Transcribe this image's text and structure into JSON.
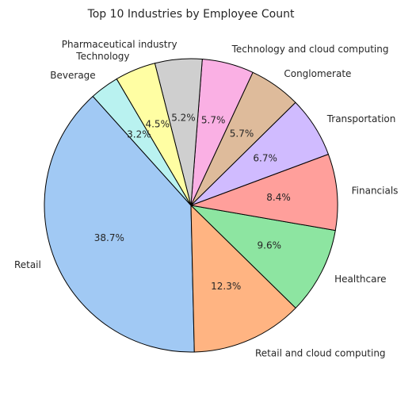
{
  "chart_data": {
    "type": "pie",
    "title": "Top 10 Industries by Employee Count",
    "start_angle_deg": 132,
    "direction": "counterclockwise",
    "slices": [
      {
        "label": "Retail",
        "value": 38.7,
        "pct_text": "38.7%",
        "color": "#a1c9f4"
      },
      {
        "label": "Retail and cloud computing",
        "value": 12.3,
        "pct_text": "12.3%",
        "color": "#ffb482"
      },
      {
        "label": "Healthcare",
        "value": 9.6,
        "pct_text": "9.6%",
        "color": "#8de5a1"
      },
      {
        "label": "Financials",
        "value": 8.4,
        "pct_text": "8.4%",
        "color": "#ff9f9b"
      },
      {
        "label": "Transportation",
        "value": 6.7,
        "pct_text": "6.7%",
        "color": "#d0bbff"
      },
      {
        "label": "Conglomerate",
        "value": 5.7,
        "pct_text": "5.7%",
        "color": "#debb9b"
      },
      {
        "label": "Technology and cloud computing",
        "value": 5.7,
        "pct_text": "5.7%",
        "color": "#fab0e4"
      },
      {
        "label": "Pharmaceutical industry",
        "value": 5.2,
        "pct_text": "5.2%",
        "color": "#cfcfcf"
      },
      {
        "label": "Technology",
        "value": 4.5,
        "pct_text": "4.5%",
        "color": "#fffea3"
      },
      {
        "label": "Beverage",
        "value": 3.2,
        "pct_text": "3.2%",
        "color": "#b9f2f0"
      }
    ]
  }
}
